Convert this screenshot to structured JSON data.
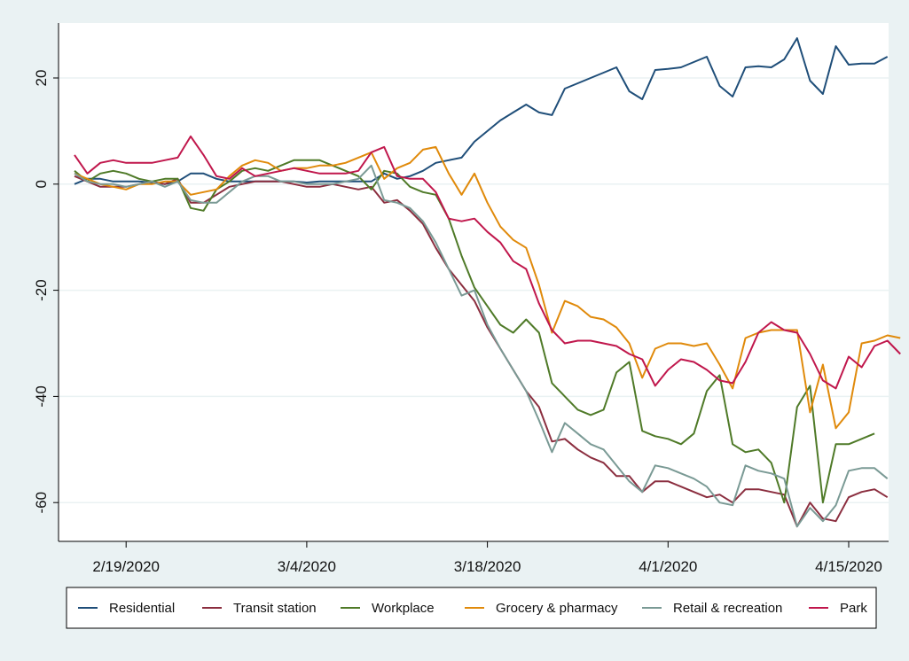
{
  "colors": {
    "background": "#eaf2f3",
    "plot_bg": "#ffffff",
    "grid": "#eaf2f3"
  },
  "chart_data": {
    "type": "line",
    "title": "",
    "xlabel": "",
    "ylabel": "",
    "x_ticks": [
      {
        "label": "2/19/2020",
        "day": 4
      },
      {
        "label": "3/4/2020",
        "day": 18
      },
      {
        "label": "3/18/2020",
        "day": 32
      },
      {
        "label": "4/1/2020",
        "day": 46
      },
      {
        "label": "4/15/2020",
        "day": 60
      }
    ],
    "x_start_date": "2/15/2020",
    "xlim": [
      "2/15/2020",
      "4/17/2020"
    ],
    "ylim": [
      -66,
      30
    ],
    "y_ticks": [
      20,
      0,
      -20,
      -40,
      -60
    ],
    "legend_position": "bottom",
    "series": [
      {
        "name": "Residential",
        "color": "#1f4e79",
        "values": [
          0,
          1,
          1,
          0.5,
          0.5,
          0.5,
          0.3,
          0,
          0.5,
          2,
          2,
          1,
          0.5,
          0.5,
          0.5,
          0.5,
          0.5,
          0.5,
          0.3,
          0.5,
          0.5,
          0.5,
          0.5,
          0.5,
          2,
          1,
          1.5,
          2.5,
          4,
          4.5,
          5,
          8,
          10,
          12,
          13.5,
          15,
          13.5,
          13,
          18,
          19,
          20,
          21,
          22,
          17.5,
          16,
          21.5,
          21.7,
          22,
          23,
          24,
          18.5,
          16.5,
          22,
          22.2,
          22,
          23.5,
          27.5,
          19.5,
          17,
          26,
          22.5,
          22.7,
          22.7,
          24
        ]
      },
      {
        "name": "Transit station",
        "color": "#8b2e3f",
        "values": [
          1.5,
          0.5,
          -0.5,
          -0.5,
          -0.5,
          0,
          0.5,
          0,
          1,
          -3.5,
          -3.5,
          -2,
          -0.5,
          0,
          0.5,
          0.5,
          0.5,
          0,
          -0.5,
          -0.5,
          0,
          -0.5,
          -1,
          -0.5,
          -3.5,
          -3,
          -5,
          -7.5,
          -12,
          -16,
          -19,
          -22,
          -27,
          -31,
          -35,
          -39,
          -42,
          -48.5,
          -48,
          -50,
          -51.5,
          -52.5,
          -55,
          -55,
          -58,
          -56,
          -56,
          -57,
          -58,
          -59,
          -58.5,
          -60,
          -57.5,
          -57.5,
          -58,
          -58.5,
          -64.5,
          -60,
          -63,
          -63.5,
          -59,
          -58,
          -57.5,
          -59
        ]
      },
      {
        "name": "Workplace",
        "color": "#4f7a28",
        "values": [
          2.5,
          0.5,
          2,
          2.5,
          2,
          1,
          0.5,
          1,
          1,
          -4.5,
          -5,
          -1,
          0.5,
          2.5,
          3,
          2.5,
          3.5,
          4.5,
          4.5,
          4.5,
          3.5,
          2.5,
          1.5,
          -1,
          2.5,
          2,
          -0.5,
          -1.5,
          -2,
          -6.5,
          -13.5,
          -19.5,
          -23,
          -26.5,
          -28,
          -25.5,
          -28,
          -37.5,
          -40,
          -42.5,
          -43.5,
          -42.5,
          -35.5,
          -33.5,
          -46.5,
          -47.5,
          -48,
          -49,
          -47,
          -39,
          -36,
          -49,
          -50.5,
          -50,
          -52.5,
          -60,
          -42,
          -38,
          -60,
          -49,
          -49,
          -48,
          -47
        ]
      },
      {
        "name": "Grocery & pharmacy",
        "color": "#e08a0b",
        "values": [
          2,
          1,
          0,
          -0.5,
          -1,
          0,
          0,
          0.5,
          0.5,
          -2,
          -1.5,
          -1,
          1.5,
          3.5,
          4.5,
          4,
          2.5,
          3,
          3,
          3.5,
          3.5,
          4,
          5,
          6,
          1,
          3,
          4,
          6.5,
          7,
          2,
          -2,
          2,
          -3.5,
          -8,
          -10.5,
          -12,
          -19,
          -28,
          -22,
          -23,
          -25,
          -25.5,
          -27,
          -30,
          -36.5,
          -31,
          -30,
          -30,
          -30.5,
          -30,
          -34,
          -38.5,
          -29,
          -28,
          -27.5,
          -27.5,
          -27.5,
          -43,
          -34,
          -46,
          -43,
          -30,
          -29.5,
          -28.5,
          -29
        ]
      },
      {
        "name": "Retail & recreation",
        "color": "#7a9a95",
        "values": [
          2,
          0.5,
          0,
          0,
          -0.5,
          0,
          0.5,
          -0.5,
          0.5,
          -3,
          -3.5,
          -3.5,
          -1.5,
          0.5,
          1.5,
          1.5,
          0.5,
          0.5,
          0,
          0,
          0,
          0.5,
          1,
          3.5,
          -3,
          -3.5,
          -4.5,
          -7,
          -11,
          -16,
          -21,
          -20,
          -26.5,
          -31,
          -35,
          -39,
          -44.5,
          -50.5,
          -45,
          -47,
          -49,
          -50,
          -53,
          -56,
          -58,
          -53,
          -53.5,
          -54.5,
          -55.5,
          -57,
          -60,
          -60.5,
          -53,
          -54,
          -54.5,
          -55.5,
          -64.5,
          -61,
          -63.5,
          -60.5,
          -54,
          -53.5,
          -53.5,
          -55.5
        ]
      },
      {
        "name": "Park",
        "color": "#c0174c",
        "values": [
          5.5,
          2,
          4,
          4.5,
          4,
          4,
          4,
          4.5,
          5,
          9,
          5.5,
          1.5,
          1,
          3,
          1.5,
          2,
          2.5,
          3,
          2.5,
          2,
          2,
          2,
          2.5,
          6,
          7,
          1.5,
          1,
          1,
          -1.5,
          -6.5,
          -7,
          -6.5,
          -9,
          -11,
          -14.5,
          -16,
          -22.5,
          -27.5,
          -30,
          -29.5,
          -29.5,
          -30,
          -30.5,
          -32,
          -33,
          -38,
          -35,
          -33,
          -33.5,
          -35,
          -37,
          -37.5,
          -33.5,
          -28,
          -26,
          -27.5,
          -28,
          -32,
          -37,
          -38.5,
          -32.5,
          -34.5,
          -30.5,
          -29.5,
          -32
        ]
      }
    ]
  }
}
